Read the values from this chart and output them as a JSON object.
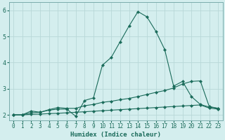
{
  "xlabel": "Humidex (Indice chaleur)",
  "bg_color": "#d4eeee",
  "grid_color": "#b8d8d8",
  "line_color": "#1a6b5a",
  "xlim": [
    -0.5,
    23.5
  ],
  "ylim": [
    1.8,
    6.3
  ],
  "x_ticks": [
    0,
    1,
    2,
    3,
    4,
    5,
    6,
    7,
    8,
    9,
    10,
    11,
    12,
    13,
    14,
    15,
    16,
    17,
    18,
    19,
    20,
    21,
    22,
    23
  ],
  "y_ticks": [
    2,
    3,
    4,
    5,
    6
  ],
  "series1_y": [
    2.0,
    2.0,
    2.15,
    2.1,
    2.18,
    2.22,
    2.22,
    1.95,
    2.55,
    2.65,
    3.9,
    4.2,
    4.8,
    5.4,
    5.95,
    5.75,
    5.2,
    4.5,
    3.1,
    3.28,
    2.7,
    2.4,
    2.3,
    2.25
  ],
  "series2_y": [
    2.0,
    2.0,
    2.08,
    2.1,
    2.2,
    2.28,
    2.25,
    2.25,
    2.35,
    2.4,
    2.48,
    2.52,
    2.58,
    2.63,
    2.7,
    2.78,
    2.86,
    2.93,
    3.03,
    3.18,
    3.28,
    3.3,
    2.32,
    2.25
  ],
  "series3_y": [
    2.0,
    2.0,
    2.02,
    2.03,
    2.05,
    2.06,
    2.08,
    2.1,
    2.12,
    2.14,
    2.16,
    2.18,
    2.2,
    2.22,
    2.24,
    2.26,
    2.28,
    2.3,
    2.32,
    2.34,
    2.36,
    2.38,
    2.26,
    2.22
  ]
}
